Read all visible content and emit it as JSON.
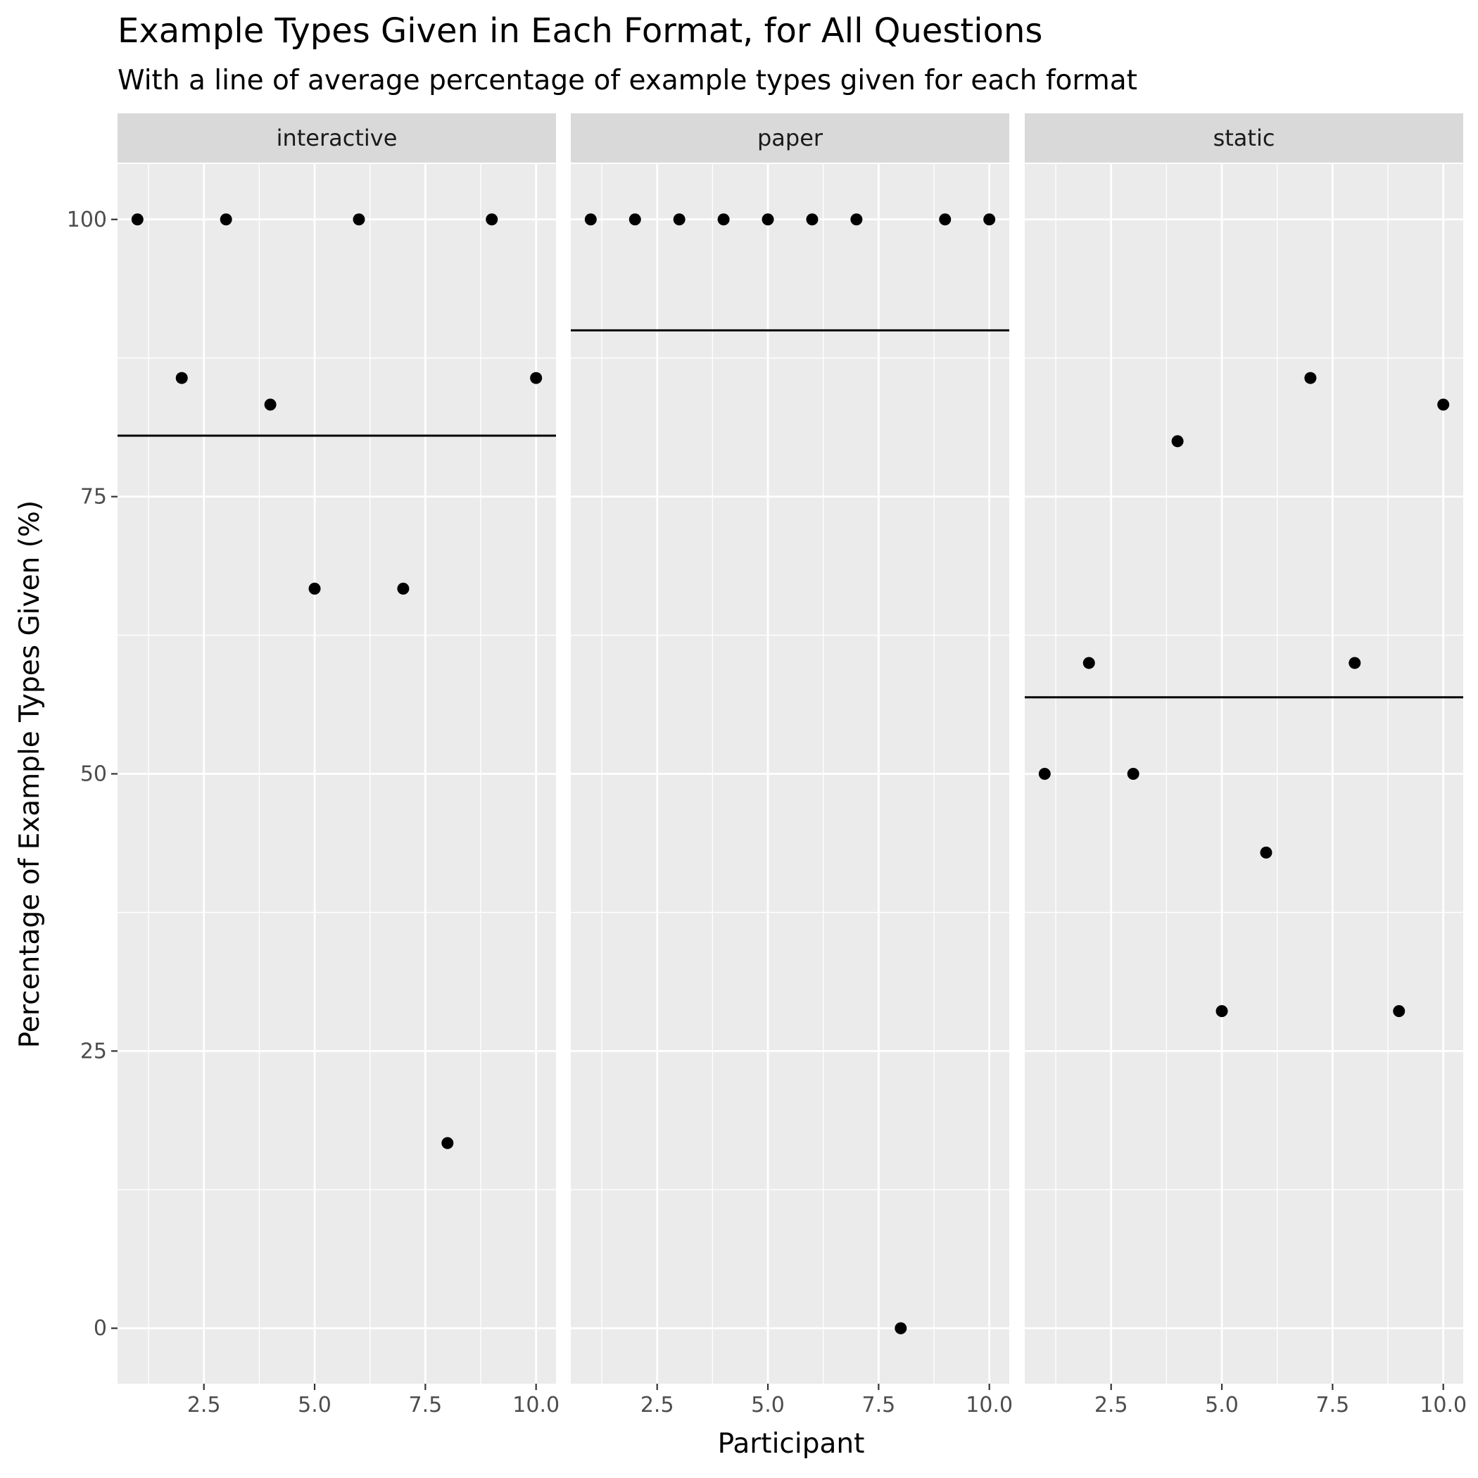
{
  "chart_data": {
    "type": "scatter",
    "title": "Example Types Given in Each Format, for All Questions",
    "subtitle": "With a line of average percentage of example types given for each format",
    "xlabel": "Participant",
    "ylabel": "Percentage of Example Types Given (%)",
    "xlim": [
      0.55,
      10.45
    ],
    "ylim": [
      -5,
      105
    ],
    "x_ticks": [
      2.5,
      5.0,
      7.5,
      10.0
    ],
    "x_tick_labels": [
      "2.5",
      "5.0",
      "7.5",
      "10.0"
    ],
    "y_ticks": [
      0,
      25,
      50,
      75,
      100
    ],
    "y_tick_labels": [
      "0",
      "25",
      "50",
      "75",
      "100"
    ],
    "grid": true,
    "colors": {
      "panel_background": "#ebebeb",
      "strip_background": "#d9d9d9",
      "grid": "#ffffff",
      "points": "#000000",
      "mean_line": "#000000"
    },
    "facets": [
      {
        "label": "interactive",
        "x": [
          1,
          2,
          3,
          4,
          5,
          6,
          7,
          8,
          9,
          10
        ],
        "y": [
          100,
          85.7,
          100,
          83.3,
          66.7,
          100,
          66.7,
          16.7,
          100,
          85.7
        ],
        "mean": 80.5
      },
      {
        "label": "paper",
        "x": [
          1,
          2,
          3,
          4,
          5,
          6,
          7,
          8,
          9,
          10
        ],
        "y": [
          100,
          100,
          100,
          100,
          100,
          100,
          100,
          0,
          100,
          100
        ],
        "mean": 90
      },
      {
        "label": "static",
        "x": [
          1,
          2,
          3,
          4,
          5,
          6,
          7,
          8,
          9,
          10
        ],
        "y": [
          50,
          60,
          50,
          80,
          28.6,
          42.9,
          85.7,
          60,
          28.6,
          83.3
        ],
        "mean": 56.9
      }
    ]
  }
}
